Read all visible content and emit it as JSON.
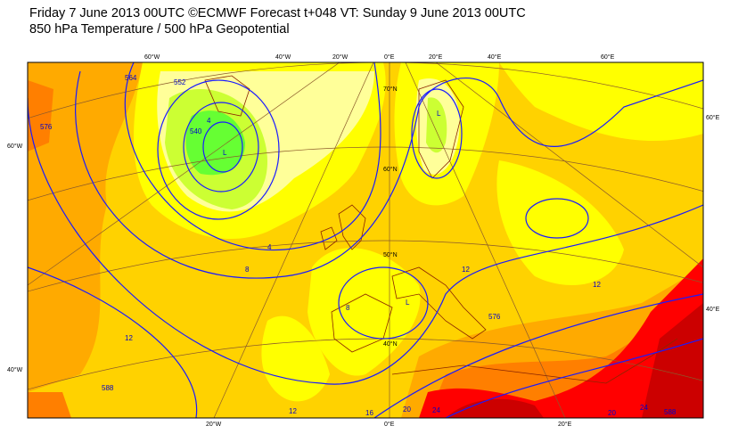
{
  "header": {
    "line1": "Friday 7 June 2013 00UTC ©ECMWF Forecast t+048 VT: Sunday 9 June 2013 00UTC",
    "line2": "850 hPa Temperature / 500 hPa Geopotential"
  },
  "map": {
    "top_labels": [
      "60°W",
      "40°W",
      "20°W",
      "0°E",
      "20°E",
      "40°E",
      "60°E"
    ],
    "bottom_labels": [
      "20°W",
      "0°E",
      "20°E"
    ],
    "left_labels": [
      "60°W",
      "40°W"
    ],
    "right_labels": [
      "60°E",
      "40°E"
    ],
    "lat_labels": [
      "70°N",
      "60°N",
      "50°N",
      "40°N"
    ],
    "contour_labels": [
      "540",
      "552",
      "564",
      "576",
      "588",
      "588",
      "4",
      "8",
      "12",
      "16",
      "20",
      "24",
      "4",
      "8",
      "12",
      "576",
      "12",
      "12",
      "20",
      "24",
      "L",
      "L",
      "L"
    ],
    "colors": {
      "green": "#66ff33",
      "lime": "#ccff33",
      "pale_yellow": "#ffff99",
      "yellow": "#ffff00",
      "light_orange": "#ffd200",
      "orange": "#ffaa00",
      "dark_orange": "#ff7f00",
      "red": "#ff0000",
      "dark_red": "#cc0000",
      "geopotential": "#1a1aff",
      "coastline": "#8b2500",
      "graticule": "#8b5a2b"
    }
  }
}
